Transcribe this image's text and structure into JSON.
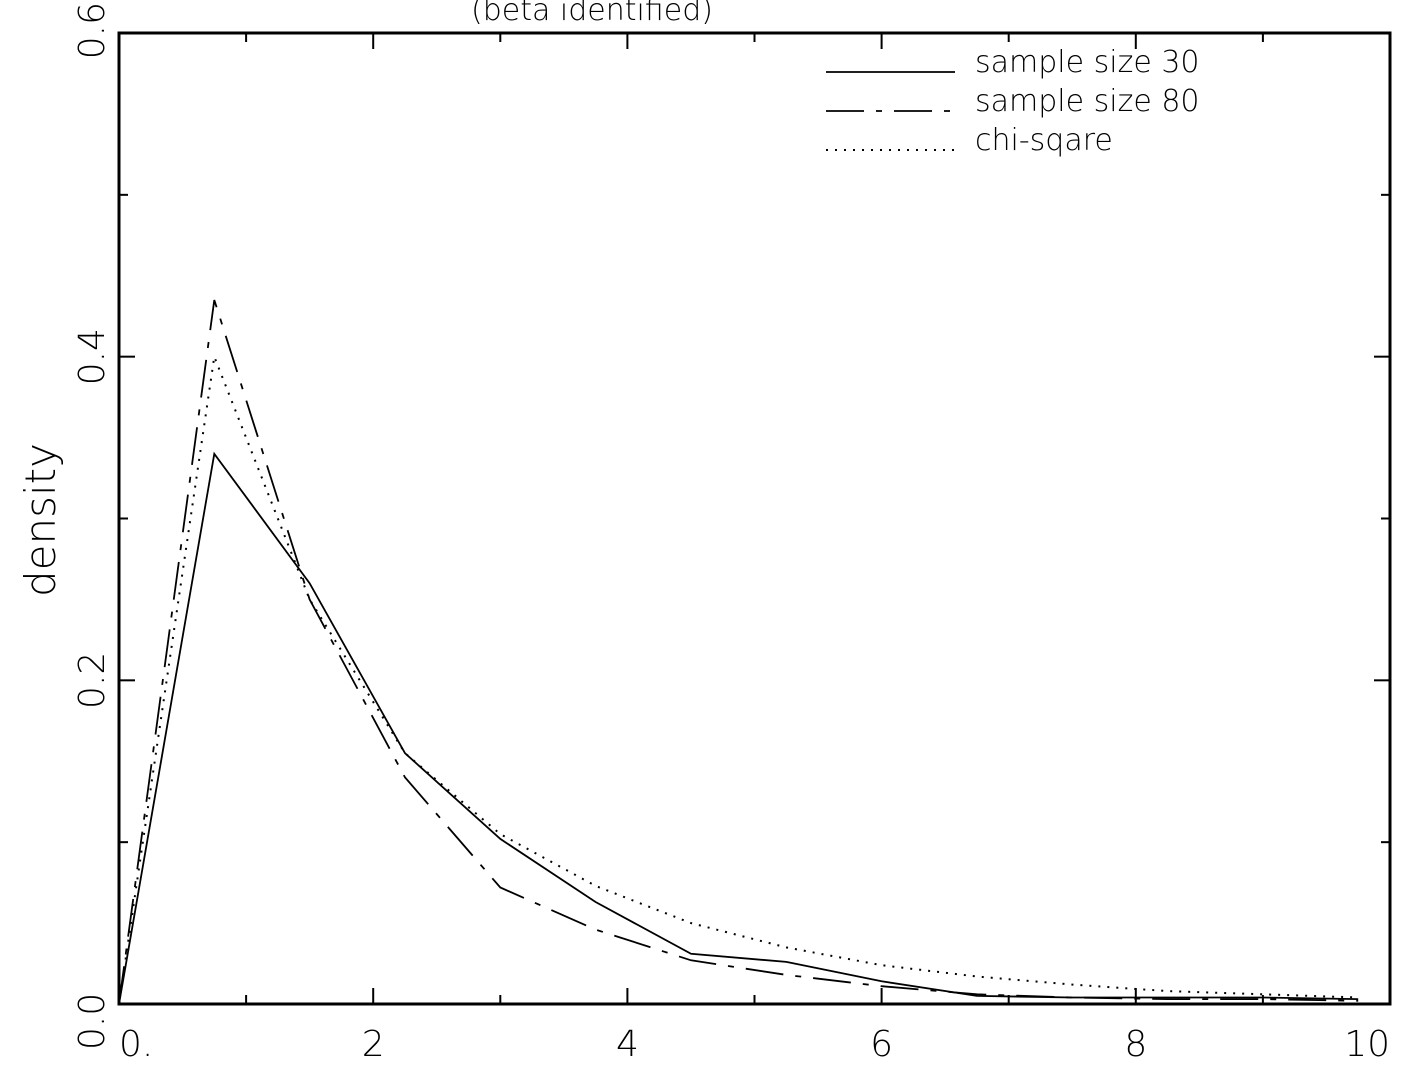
{
  "chart_data": {
    "type": "line",
    "title": "(beta identified)",
    "xlabel": "",
    "ylabel": "density",
    "xlim": [
      0,
      10
    ],
    "ylim": [
      0,
      0.6
    ],
    "x_ticks": [
      0,
      2,
      4,
      6,
      8,
      10
    ],
    "x_tick_labels": [
      "0.",
      "2",
      "4",
      "6",
      "8",
      "10"
    ],
    "y_ticks": [
      0.0,
      0.2,
      0.4,
      0.6
    ],
    "y_tick_labels": [
      "0.0",
      "0.2",
      "0.4",
      "0.6"
    ],
    "legend_position": "top-right",
    "grid": false,
    "series": [
      {
        "name": "sample size 30",
        "style": "solid",
        "color": "#000000",
        "x": [
          0,
          0.75,
          1.5,
          2.25,
          3.0,
          3.75,
          4.5,
          5.25,
          6.0,
          6.75,
          7.5,
          8.25,
          9.0,
          9.75
        ],
        "y": [
          0.0,
          0.34,
          0.26,
          0.155,
          0.102,
          0.063,
          0.031,
          0.026,
          0.014,
          0.005,
          0.004,
          0.004,
          0.004,
          0.003
        ]
      },
      {
        "name": "sample size 80",
        "style": "dashdot",
        "color": "#000000",
        "x": [
          0,
          0.75,
          1.5,
          2.25,
          3.0,
          3.75,
          4.5,
          5.25,
          6.0,
          6.75,
          7.5,
          8.25,
          9.0,
          9.75
        ],
        "y": [
          0.0,
          0.435,
          0.25,
          0.14,
          0.072,
          0.046,
          0.027,
          0.018,
          0.011,
          0.006,
          0.004,
          0.003,
          0.003,
          0.002
        ]
      },
      {
        "name": "chi-sqare",
        "style": "dotted",
        "color": "#000000",
        "x": [
          0,
          0.75,
          1.5,
          2.25,
          3.0,
          3.75,
          4.5,
          5.25,
          6.0,
          6.75,
          7.5,
          8.25,
          9.0,
          9.75
        ],
        "y": [
          0.0,
          0.4,
          0.25,
          0.155,
          0.105,
          0.073,
          0.05,
          0.035,
          0.024,
          0.017,
          0.012,
          0.008,
          0.006,
          0.004
        ]
      }
    ]
  }
}
